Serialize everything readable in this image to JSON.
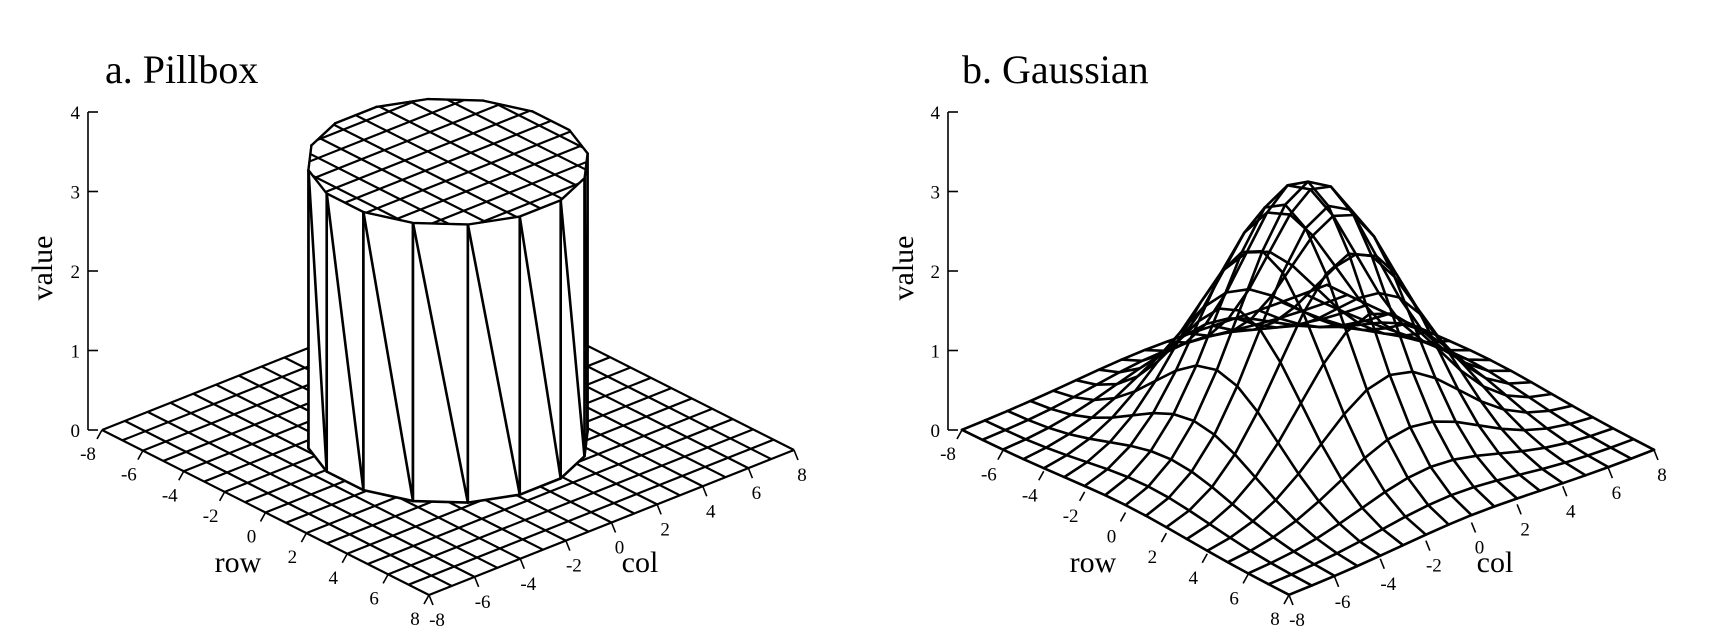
{
  "chart_data": [
    {
      "type": "surface",
      "title": "a.  Pillbox",
      "zlabel": "value",
      "xlabel": "row",
      "ylabel": "col",
      "z_ticks": [
        "0",
        "1",
        "2",
        "3",
        "4"
      ],
      "row_ticks": [
        "-8",
        "-6",
        "-4",
        "-2",
        "0",
        "2",
        "4",
        "6",
        "8"
      ],
      "col_ticks": [
        "-8",
        "-6",
        "-4",
        "-2",
        "0",
        "2",
        "4",
        "6",
        "8"
      ],
      "row_range": [
        -8,
        8
      ],
      "col_range": [
        -8,
        8
      ],
      "zlim": [
        0,
        4
      ],
      "function": "pillbox",
      "radius": 4.6,
      "height": 3.5
    },
    {
      "type": "surface",
      "title": "b.  Gaussian",
      "zlabel": "value",
      "xlabel": "row",
      "ylabel": "col",
      "z_ticks": [
        "0",
        "1",
        "2",
        "3",
        "4"
      ],
      "row_ticks": [
        "-8",
        "-6",
        "-4",
        "-2",
        "0",
        "2",
        "4",
        "6",
        "8"
      ],
      "col_ticks": [
        "-8",
        "-6",
        "-4",
        "-2",
        "0",
        "2",
        "4",
        "6",
        "8"
      ],
      "row_range": [
        -8,
        8
      ],
      "col_range": [
        -8,
        8
      ],
      "zlim": [
        0,
        4
      ],
      "function": "gaussian",
      "peak": 3.25,
      "sigma": 3.0
    }
  ]
}
